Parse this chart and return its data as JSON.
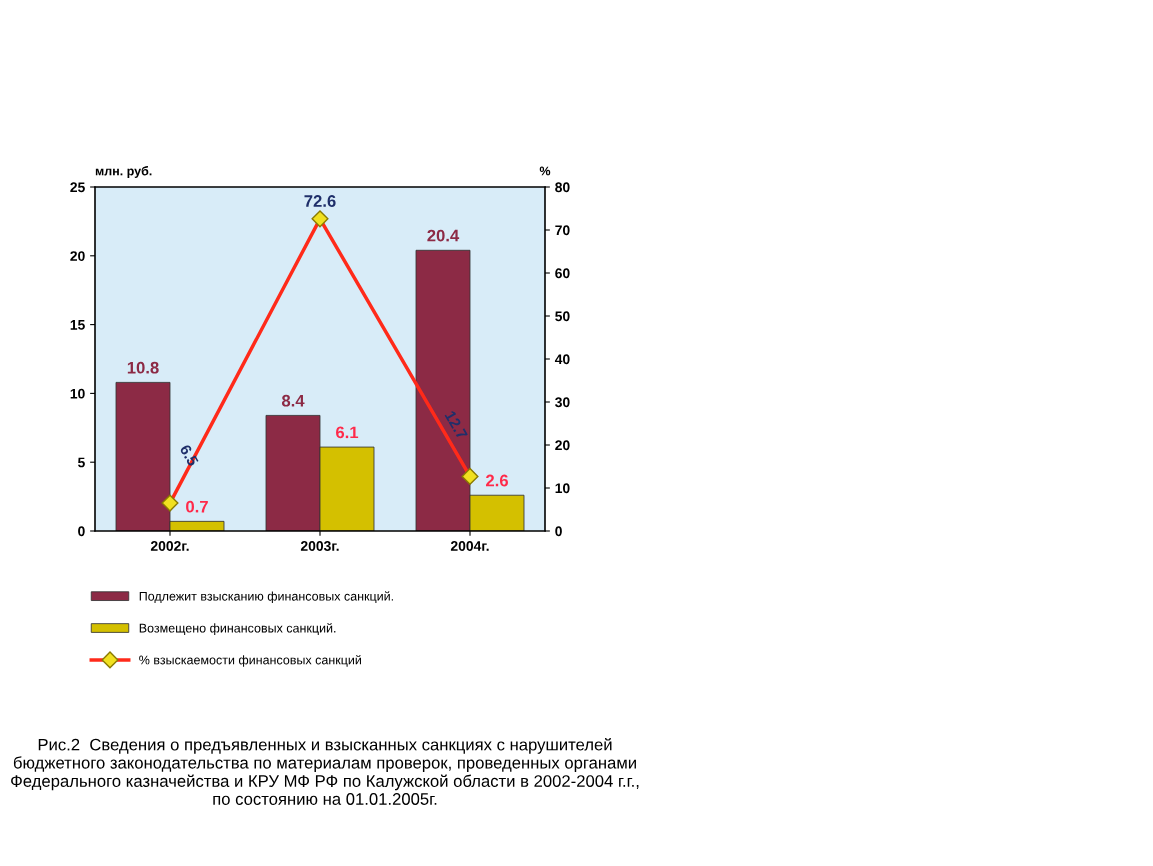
{
  "chart_data": {
    "type": "bar",
    "ylabel": "млн. руб.",
    "y2label": "%",
    "categories": [
      "2002г.",
      "2003г.",
      "2004г."
    ],
    "series": [
      {
        "name": "Подлежит взысканию финансовых санкций.",
        "color": "#8c2a45",
        "values": [
          10.8,
          8.4,
          20.4
        ]
      },
      {
        "name": "Возмещено финансовых санкций.",
        "color": "#d4c000",
        "values": [
          0.7,
          6.1,
          2.6
        ]
      },
      {
        "name": "% взыскаемости финансовых санкций",
        "type": "line",
        "axis": "y2",
        "color": "#ff2a1a",
        "marker": "diamond",
        "values": [
          6.5,
          72.6,
          12.7
        ]
      }
    ],
    "ylim": [
      0,
      25
    ],
    "yticks": [
      0,
      5,
      10,
      15,
      20,
      25
    ],
    "y2lim": [
      0,
      80
    ],
    "y2ticks": [
      0,
      10,
      20,
      30,
      40,
      50,
      60,
      70,
      80
    ],
    "data_labels": true,
    "grid": false,
    "legend": "bottom",
    "annotations": [
      "Рис.2  Сведения о предъявленных и взысканных санкциях с нарушителей бюджетного законодательства по материалам проверок, проведенных органами Федерального казначейства и КРУ МФ РФ по Калужской области в 2002-2004 г.г., по состоянию на 01.01.2005г."
    ]
  }
}
